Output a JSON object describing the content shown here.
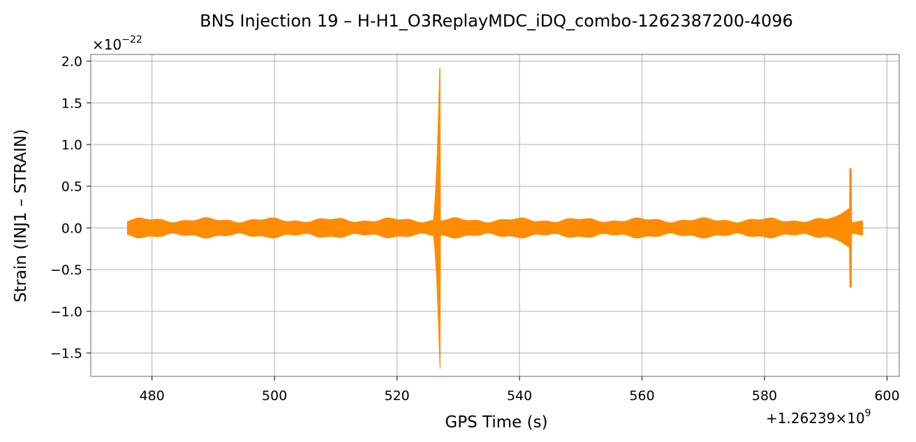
{
  "chart_data": {
    "type": "line",
    "title": "BNS Injection 19 – H-H1_O3ReplayMDC_iDQ_combo-1262387200-4096",
    "xlabel": "GPS Time (s)",
    "ylabel": "Strain (INJ1 – STRAIN)",
    "x_offset_label": "+1.26239×10",
    "x_offset_exp": "9",
    "y_multiplier_label": "×10",
    "y_multiplier_exp": "−22",
    "xlim": [
      470,
      602
    ],
    "ylim": [
      -1.78,
      2.08
    ],
    "xticks": [
      480,
      500,
      520,
      540,
      560,
      580,
      600
    ],
    "xtick_labels": [
      "480",
      "500",
      "520",
      "540",
      "560",
      "580",
      "600"
    ],
    "yticks": [
      -1.5,
      -1.0,
      -0.5,
      0.0,
      0.5,
      1.0,
      1.5,
      2.0
    ],
    "ytick_labels": [
      "−1.5",
      "−1.0",
      "−0.5",
      "0.0",
      "0.5",
      "1.0",
      "1.5",
      "2.0"
    ],
    "grid": true,
    "series": [
      {
        "color": "#ff8c00",
        "x_start": 476.0,
        "x_end": 596.0,
        "baseline_amplitude": 0.09,
        "burst_1": {
          "onset": 525.6,
          "peak_time": 527.0,
          "peak_max": 1.91,
          "peak_min": -1.61
        },
        "burst_2": {
          "onset": 588.0,
          "peak_time": 594.1,
          "peak_max": 0.71,
          "peak_min": -0.71
        }
      }
    ]
  }
}
